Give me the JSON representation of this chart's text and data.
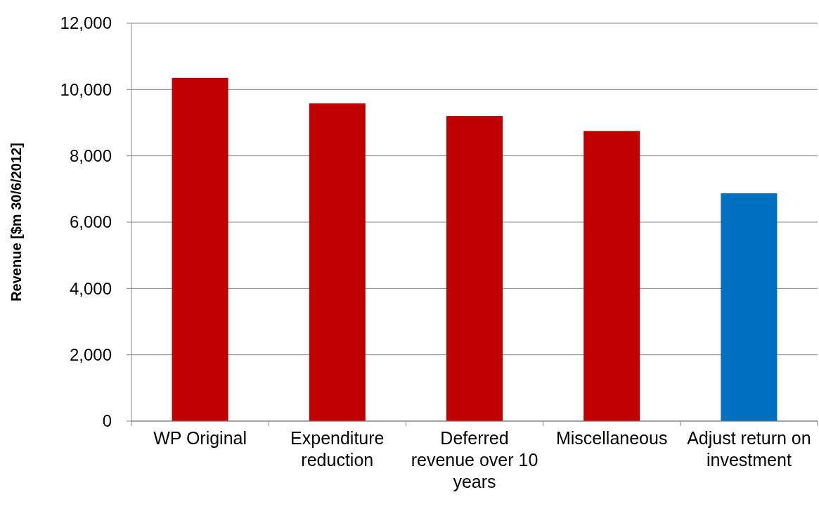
{
  "chart_data": {
    "type": "bar",
    "ylabel": "Revenue [$m 30/6/2012]",
    "categories": [
      "WP Original",
      "Expenditure reduction",
      "Deferred revenue over 10 years",
      "Miscellaneous",
      "Adjust return on investment"
    ],
    "values": [
      10350,
      9580,
      9200,
      8750,
      6870
    ],
    "colors": [
      "#c00000",
      "#c00000",
      "#c00000",
      "#c00000",
      "#0070c0"
    ],
    "ylim": [
      0,
      12000
    ],
    "yticks": [
      {
        "value": 0,
        "label": "0"
      },
      {
        "value": 2000,
        "label": "2,000"
      },
      {
        "value": 4000,
        "label": "4,000"
      },
      {
        "value": 6000,
        "label": "6,000"
      },
      {
        "value": 8000,
        "label": "8,000"
      },
      {
        "value": 10000,
        "label": "10,000"
      },
      {
        "value": 12000,
        "label": "12,000"
      }
    ],
    "grid": "y"
  }
}
